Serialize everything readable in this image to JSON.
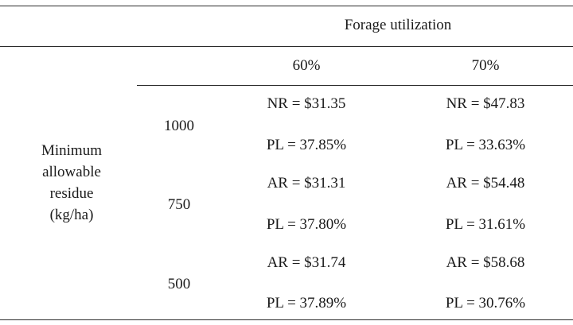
{
  "header": {
    "group_label": "Forage utilization",
    "col_60": "60%",
    "col_70": "70%"
  },
  "row_label": {
    "line1": "Minimum",
    "line2": "allowable",
    "line3": "residue",
    "line4": "(kg/ha)"
  },
  "rows": [
    {
      "residue": "1000",
      "c60_top": "NR = $31.35",
      "c60_bottom": "PL = 37.85%",
      "c70_top": "NR = $47.83",
      "c70_bottom": "PL = 33.63%"
    },
    {
      "residue": "750",
      "c60_top": "AR = $31.31",
      "c60_bottom": "PL = 37.80%",
      "c70_top": "AR = $54.48",
      "c70_bottom": "PL = 31.61%"
    },
    {
      "residue": "500",
      "c60_top": "AR = $31.74",
      "c60_bottom": "PL = 37.89%",
      "c70_top": "AR = $58.68",
      "c70_bottom": "PL = 30.76%"
    }
  ]
}
